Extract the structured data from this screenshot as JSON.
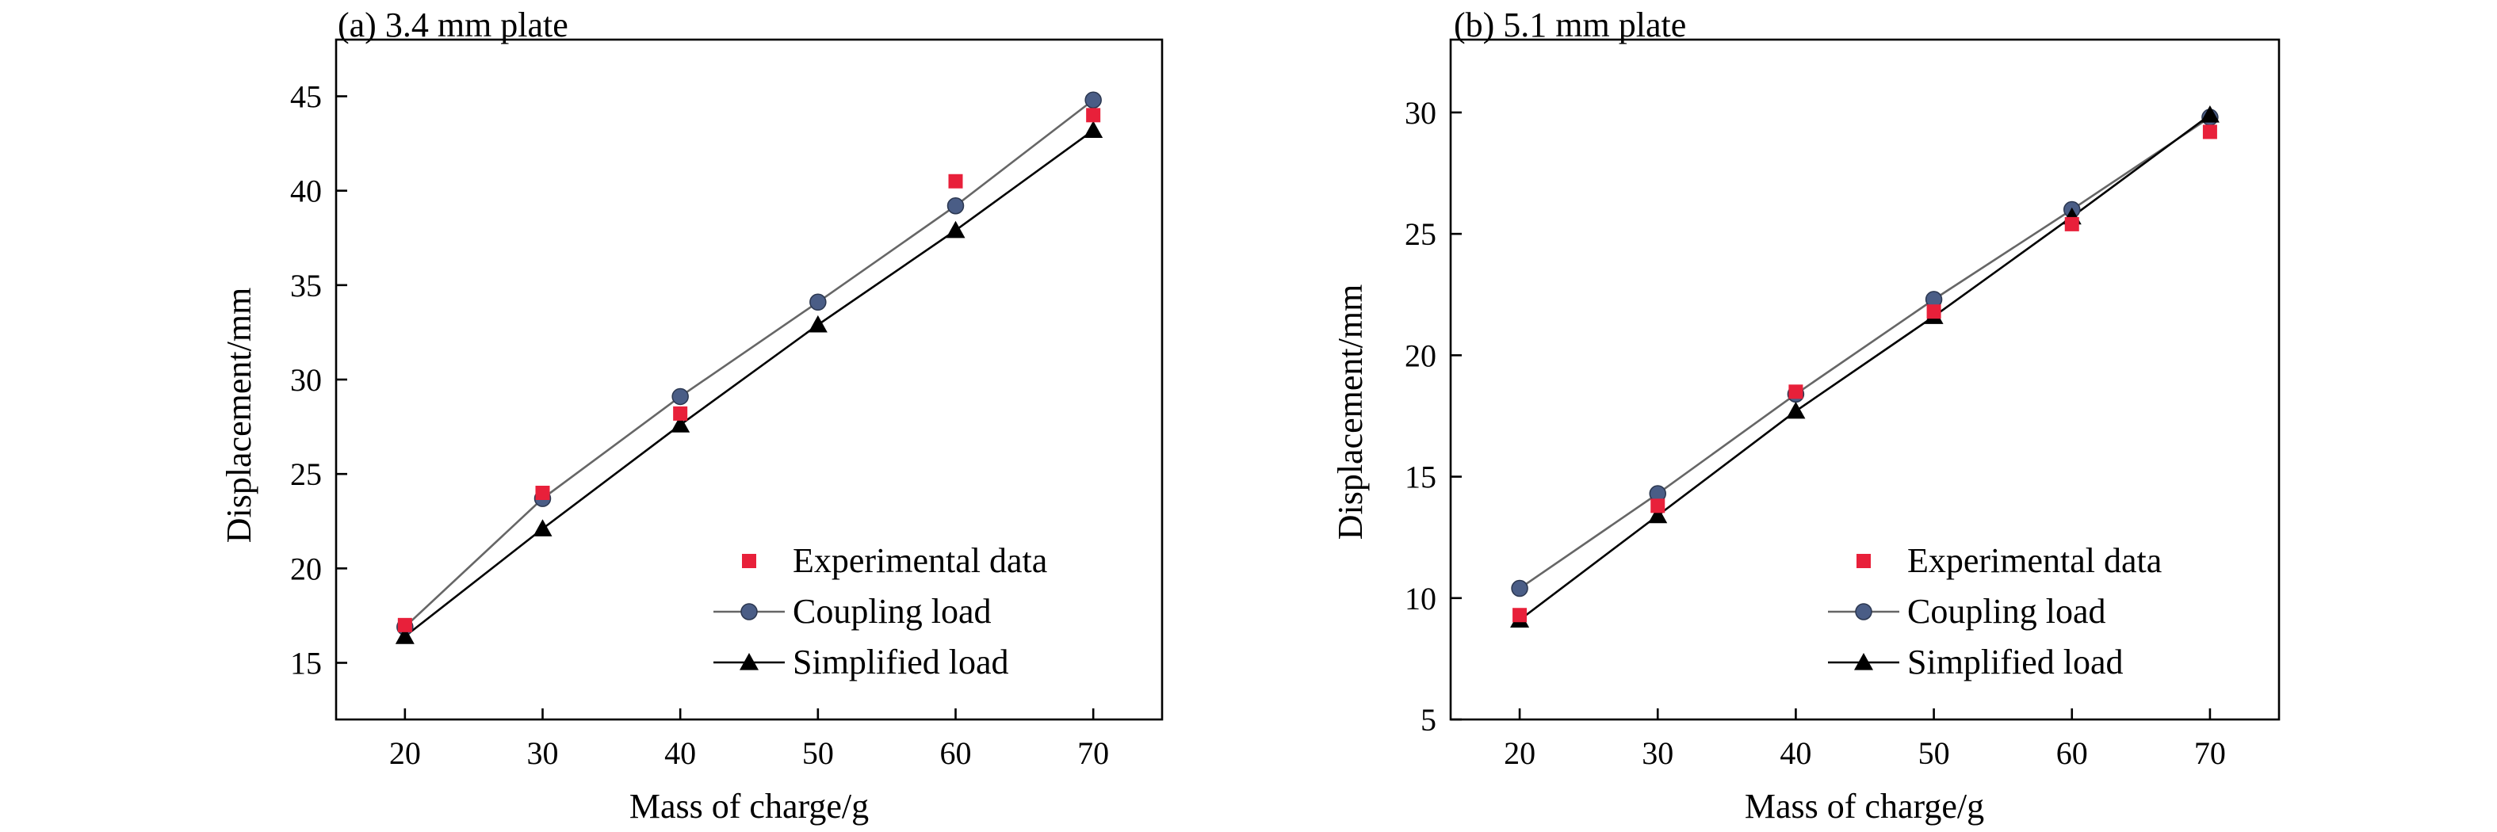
{
  "chart_data": [
    {
      "type": "line",
      "title": "(a) 3.4 mm plate",
      "xlabel": "Mass of charge/g",
      "ylabel": "Displacement/mm",
      "xlim": [
        15,
        75
      ],
      "ylim": [
        12,
        48
      ],
      "xticks": [
        20,
        30,
        40,
        50,
        60,
        70
      ],
      "yticks": [
        15,
        20,
        25,
        30,
        35,
        40,
        45
      ],
      "grid": false,
      "legend": "bottom-right",
      "series": [
        {
          "name": "Experimental data",
          "style": "scatter",
          "marker": "square",
          "color": "#e8203a",
          "x": [
            20,
            30,
            40,
            60,
            70
          ],
          "y": [
            17.0,
            24.0,
            28.2,
            40.5,
            44.0
          ]
        },
        {
          "name": "Coupling load",
          "style": "line",
          "marker": "circle",
          "color": "#4a5d86",
          "line_color": "#666666",
          "x": [
            20,
            30,
            40,
            50,
            60,
            70
          ],
          "y": [
            16.9,
            23.7,
            29.1,
            34.1,
            39.2,
            44.8
          ]
        },
        {
          "name": "Simplified load",
          "style": "line",
          "marker": "triangle",
          "color": "#000000",
          "line_color": "#000000",
          "x": [
            20,
            30,
            40,
            50,
            60,
            70
          ],
          "y": [
            16.4,
            22.1,
            27.6,
            32.9,
            37.9,
            43.2
          ]
        }
      ]
    },
    {
      "type": "line",
      "title": "(b) 5.1 mm plate",
      "xlabel": "Mass of charge/g",
      "ylabel": "Displacement/mm",
      "xlim": [
        15,
        75
      ],
      "ylim": [
        5,
        33
      ],
      "xticks": [
        20,
        30,
        40,
        50,
        60,
        70
      ],
      "yticks": [
        5,
        10,
        15,
        20,
        25,
        30
      ],
      "grid": false,
      "legend": "bottom-right",
      "series": [
        {
          "name": "Experimental data",
          "style": "scatter",
          "marker": "square",
          "color": "#e8203a",
          "x": [
            20,
            30,
            40,
            50,
            60,
            70
          ],
          "y": [
            9.3,
            13.8,
            18.5,
            21.8,
            25.4,
            29.2
          ]
        },
        {
          "name": "Coupling load",
          "style": "line",
          "marker": "circle",
          "color": "#4a5d86",
          "line_color": "#666666",
          "x": [
            20,
            30,
            40,
            50,
            60,
            70
          ],
          "y": [
            10.4,
            14.3,
            18.4,
            22.3,
            26.0,
            29.8
          ]
        },
        {
          "name": "Simplified load",
          "style": "line",
          "marker": "triangle",
          "color": "#000000",
          "line_color": "#000000",
          "x": [
            20,
            30,
            40,
            50,
            60,
            70
          ],
          "y": [
            9.1,
            13.4,
            17.7,
            21.6,
            25.7,
            29.9
          ]
        }
      ]
    }
  ]
}
